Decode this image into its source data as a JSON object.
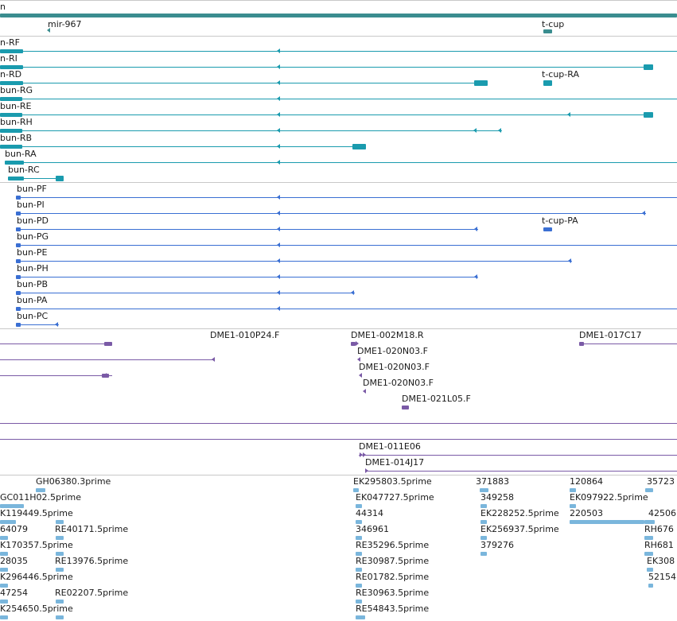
{
  "colors": {
    "rna": "#1a9bae",
    "protein": "#3a6fd3",
    "clone": "#7a5aa6",
    "est": "#7ab6dc",
    "gene_bar": "#3a8d8f",
    "separator": "#c8c8c8"
  },
  "tracks": {
    "gene_labels": [
      {
        "id": "g0",
        "text": "n"
      },
      {
        "id": "g1",
        "text": "mir-967"
      },
      {
        "id": "g2",
        "text": "t-cup"
      }
    ],
    "rna_labels": [
      {
        "id": "r0",
        "text": "n-RF"
      },
      {
        "id": "r1",
        "text": "n-RI"
      },
      {
        "id": "r2",
        "text": "n-RD"
      },
      {
        "id": "r3",
        "text": "t-cup-RA"
      },
      {
        "id": "r4",
        "text": "bun-RG"
      },
      {
        "id": "r5",
        "text": "bun-RE"
      },
      {
        "id": "r6",
        "text": "bun-RH"
      },
      {
        "id": "r7",
        "text": "bun-RB"
      },
      {
        "id": "r8",
        "text": "bun-RA"
      },
      {
        "id": "r9",
        "text": "bun-RC"
      }
    ],
    "protein_labels": [
      {
        "id": "p0",
        "text": "bun-PF"
      },
      {
        "id": "p1",
        "text": "bun-PI"
      },
      {
        "id": "p2",
        "text": "bun-PD"
      },
      {
        "id": "p3",
        "text": "t-cup-PA"
      },
      {
        "id": "p4",
        "text": "bun-PG"
      },
      {
        "id": "p5",
        "text": "bun-PE"
      },
      {
        "id": "p6",
        "text": "bun-PH"
      },
      {
        "id": "p7",
        "text": "bun-PB"
      },
      {
        "id": "p8",
        "text": "bun-PA"
      },
      {
        "id": "p9",
        "text": "bun-PC"
      }
    ],
    "clone_labels": [
      {
        "id": "c0",
        "text": "DME1-010P24.F"
      },
      {
        "id": "c1",
        "text": "DME1-002M18.R"
      },
      {
        "id": "c2",
        "text": "DME1-017C17"
      },
      {
        "id": "c3",
        "text": "DME1-020N03.F"
      },
      {
        "id": "c4",
        "text": "DME1-020N03.F"
      },
      {
        "id": "c5",
        "text": "DME1-020N03.F"
      },
      {
        "id": "c6",
        "text": "DME1-021L05.F"
      },
      {
        "id": "c7",
        "text": "DME1-011E06"
      },
      {
        "id": "c8",
        "text": "DME1-014J17"
      }
    ],
    "est_labels": [
      {
        "id": "e0",
        "text": "GH06380.3prime"
      },
      {
        "id": "e1",
        "text": "EK295803.5prime"
      },
      {
        "id": "e2",
        "text": "371883"
      },
      {
        "id": "e3",
        "text": "120864"
      },
      {
        "id": "e4",
        "text": "35723"
      },
      {
        "id": "e5",
        "text": "GC011H02.5prime"
      },
      {
        "id": "e6",
        "text": "EK047727.5prime"
      },
      {
        "id": "e7",
        "text": "349258"
      },
      {
        "id": "e8",
        "text": "EK097922.5prime"
      },
      {
        "id": "e9",
        "text": "K119449.5prime"
      },
      {
        "id": "e10",
        "text": "44314"
      },
      {
        "id": "e11",
        "text": "EK228252.5prime"
      },
      {
        "id": "e12",
        "text": "220503"
      },
      {
        "id": "e13",
        "text": "42506"
      },
      {
        "id": "e14",
        "text": "64079"
      },
      {
        "id": "e15",
        "text": "RE40171.5prime"
      },
      {
        "id": "e16",
        "text": "346961"
      },
      {
        "id": "e17",
        "text": "EK256937.5prime"
      },
      {
        "id": "e18",
        "text": "RH676"
      },
      {
        "id": "e19",
        "text": "K170357.5prime"
      },
      {
        "id": "e20",
        "text": "RE35296.5prime"
      },
      {
        "id": "e21",
        "text": "379276"
      },
      {
        "id": "e22",
        "text": "RH681"
      },
      {
        "id": "e23",
        "text": "28035"
      },
      {
        "id": "e24",
        "text": "RE13976.5prime"
      },
      {
        "id": "e25",
        "text": "RE30987.5prime"
      },
      {
        "id": "e26",
        "text": "EK308"
      },
      {
        "id": "e27",
        "text": "K296446.5prime"
      },
      {
        "id": "e28",
        "text": "RE01782.5prime"
      },
      {
        "id": "e29",
        "text": "52154"
      },
      {
        "id": "e30",
        "text": "47254"
      },
      {
        "id": "e31",
        "text": "RE02207.5prime"
      },
      {
        "id": "e32",
        "text": "RE30963.5prime"
      },
      {
        "id": "e33",
        "text": "K254650.5prime"
      },
      {
        "id": "e34",
        "text": "RE54843.5prime"
      }
    ]
  }
}
